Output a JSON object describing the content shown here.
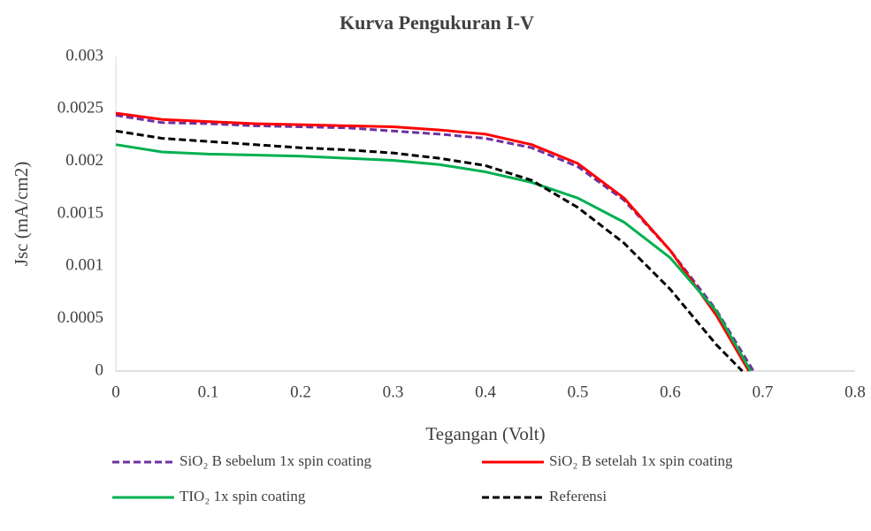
{
  "chart_data": {
    "type": "line",
    "title": "Kurva Pengukuran I-V",
    "x_label": "Tegangan (Volt)",
    "y_label": "Jsc (mA/cm2)",
    "xlim": [
      0,
      0.8
    ],
    "xticks": [
      0,
      0.1,
      0.2,
      0.3,
      0.4,
      0.5,
      0.6,
      0.7,
      0.8
    ],
    "ylim": [
      0,
      0.003
    ],
    "yticks": [
      0,
      0.0005,
      0.001,
      0.0015,
      0.002,
      0.0025,
      0.003
    ],
    "grid": false,
    "legend": "bottom",
    "series": [
      {
        "name": "SiO₂ B sebelum 1x spin coating",
        "color": "#7030a0",
        "dashed": true,
        "x": [
          0,
          0.05,
          0.1,
          0.15,
          0.2,
          0.25,
          0.3,
          0.35,
          0.4,
          0.45,
          0.5,
          0.55,
          0.6,
          0.65,
          0.69
        ],
        "values": [
          0.00244,
          0.00237,
          0.00236,
          0.00234,
          0.00233,
          0.00232,
          0.00229,
          0.00226,
          0.00222,
          0.00213,
          0.00195,
          0.00163,
          0.00115,
          0.00058,
          0
        ]
      },
      {
        "name": "SiO₂ B setelah 1x spin coating",
        "color": "#ff0000",
        "dashed": false,
        "x": [
          0,
          0.05,
          0.1,
          0.15,
          0.2,
          0.25,
          0.3,
          0.35,
          0.4,
          0.45,
          0.5,
          0.55,
          0.6,
          0.65,
          0.685
        ],
        "values": [
          0.00246,
          0.0024,
          0.00238,
          0.00236,
          0.00235,
          0.00234,
          0.00233,
          0.0023,
          0.00226,
          0.00216,
          0.00198,
          0.00165,
          0.00115,
          0.00053,
          0
        ]
      },
      {
        "name": "TIO₂ 1x spin coating",
        "color": "#00b050",
        "dashed": false,
        "x": [
          0,
          0.05,
          0.1,
          0.15,
          0.2,
          0.25,
          0.3,
          0.35,
          0.4,
          0.45,
          0.5,
          0.55,
          0.6,
          0.65,
          0.687
        ],
        "values": [
          0.00216,
          0.00209,
          0.00207,
          0.00206,
          0.00205,
          0.00203,
          0.00201,
          0.00197,
          0.0019,
          0.0018,
          0.00165,
          0.00142,
          0.00108,
          0.00057,
          0
        ]
      },
      {
        "name": "Referensi",
        "color": "#000000",
        "dashed": true,
        "x": [
          0,
          0.05,
          0.1,
          0.15,
          0.2,
          0.25,
          0.3,
          0.35,
          0.4,
          0.45,
          0.5,
          0.55,
          0.6,
          0.65,
          0.678
        ],
        "values": [
          0.00229,
          0.00222,
          0.00219,
          0.00216,
          0.00213,
          0.00211,
          0.00208,
          0.00203,
          0.00196,
          0.00182,
          0.00156,
          0.00122,
          0.00078,
          0.00025,
          0
        ]
      }
    ]
  }
}
